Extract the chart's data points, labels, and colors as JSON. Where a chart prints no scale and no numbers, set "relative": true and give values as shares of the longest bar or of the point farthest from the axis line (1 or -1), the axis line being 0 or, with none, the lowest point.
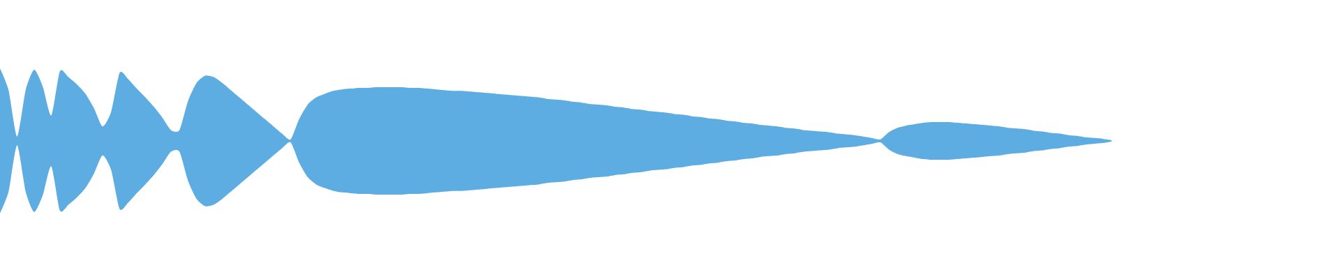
{
  "chart_data": {
    "type": "area",
    "relative": true,
    "categories": [
      null,
      null,
      null,
      null,
      null,
      null,
      null,
      null,
      null,
      null,
      null,
      null,
      null,
      null,
      null,
      null,
      null,
      null,
      null,
      null,
      null,
      null,
      null,
      null,
      null,
      null,
      null,
      null,
      null,
      null,
      null,
      null,
      null,
      null,
      null,
      null,
      null,
      null,
      null,
      null,
      null,
      null,
      null,
      null,
      null,
      null,
      null,
      null,
      null,
      null,
      null,
      null,
      null,
      null,
      null,
      null,
      null,
      null,
      null,
      null,
      null,
      null,
      null,
      null,
      null,
      null,
      null,
      null,
      null,
      null,
      null,
      null,
      null,
      null,
      null,
      null,
      null,
      null,
      null,
      null,
      null,
      null,
      null,
      null,
      null,
      null,
      null,
      null,
      null,
      null,
      null,
      null,
      null,
      null,
      null,
      null,
      null,
      null,
      null,
      null,
      null,
      null,
      null,
      null,
      null,
      null,
      null,
      null,
      null,
      null,
      null,
      null,
      null,
      null,
      null,
      null,
      null,
      null,
      null,
      null,
      null,
      null,
      null,
      null,
      null,
      null,
      null,
      null,
      null,
      null,
      null
    ],
    "series": [
      {
        "color": "#5dade2",
        "values": [
          1.0,
          0.7,
          0.06,
          0.7,
          0.98,
          0.75,
          0.35,
          0.96,
          0.88,
          0.78,
          0.65,
          0.45,
          0.2,
          0.4,
          0.94,
          0.85,
          0.72,
          0.6,
          0.47,
          0.32,
          0.15,
          0.15,
          0.55,
          0.8,
          0.9,
          0.88,
          0.8,
          0.7,
          0.6,
          0.5,
          0.4,
          0.3,
          0.2,
          0.1,
          0.02,
          0.3,
          0.5,
          0.6,
          0.65,
          0.69,
          0.71,
          0.72,
          0.73,
          0.73,
          0.74,
          0.74,
          0.74,
          0.74,
          0.73,
          0.73,
          0.72,
          0.71,
          0.7,
          0.69,
          0.69,
          0.68,
          0.67,
          0.66,
          0.65,
          0.64,
          0.63,
          0.62,
          0.61,
          0.6,
          0.58,
          0.57,
          0.56,
          0.54,
          0.53,
          0.51,
          0.5,
          0.49,
          0.47,
          0.46,
          0.44,
          0.43,
          0.41,
          0.4,
          0.39,
          0.37,
          0.36,
          0.34,
          0.33,
          0.31,
          0.3,
          0.28,
          0.27,
          0.25,
          0.24,
          0.22,
          0.21,
          0.2,
          0.18,
          0.17,
          0.15,
          0.14,
          0.13,
          0.12,
          0.1,
          0.09,
          0.08,
          0.06,
          0.04,
          0.02,
          0.12,
          0.18,
          0.21,
          0.23,
          0.25,
          0.26,
          0.26,
          0.26,
          0.25,
          0.24,
          0.23,
          0.22,
          0.21,
          0.2,
          0.18,
          0.17,
          0.16,
          0.14,
          0.13,
          0.11,
          0.1,
          0.08,
          0.07,
          0.05,
          0.04,
          0.03,
          0.01
        ]
      }
    ]
  }
}
